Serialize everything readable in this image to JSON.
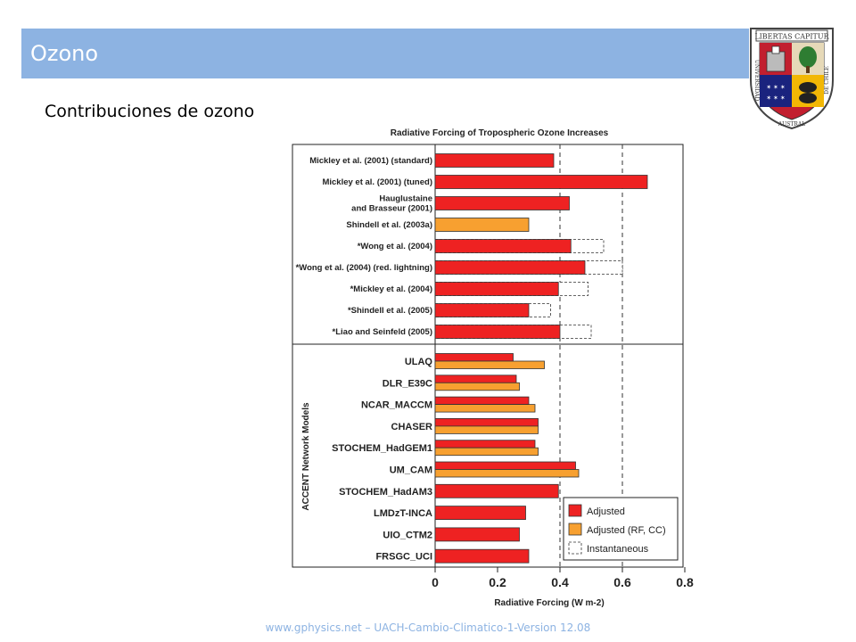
{
  "slide": {
    "title": "Ozono",
    "subtitle": "Contribuciones de ozono",
    "footer": "www.gphysics.net – UACH-Cambio-Climatico-1-Version 12.08",
    "accent_color": "#8db3e2",
    "crest_text": {
      "top": "LIBERTAS CAPITUR",
      "left": "UNIVERSIDAD",
      "bottom": "AUSTRAL",
      "right": "DE CHILE"
    }
  },
  "chart_data": {
    "type": "bar",
    "orientation": "horizontal",
    "title": "Radiative Forcing of Tropospheric Ozone Increases",
    "xlabel": "Radiative Forcing (W m-2)",
    "xlim": [
      0,
      0.8
    ],
    "x_ticks": [
      "0",
      "0.2",
      "0.4",
      "0.6",
      "0.8"
    ],
    "reference_lines": [
      0.4,
      0.6
    ],
    "group_label": "ACCENT Network Models",
    "colors": {
      "Adjusted": "#ee2222",
      "Adjusted (RF, CC)": "#f7a030",
      "Instantaneous": "#ffffff"
    },
    "legend": [
      "Adjusted",
      "Adjusted (RF, CC)",
      "Instantaneous"
    ],
    "legend_position": "bottom-right",
    "studies": [
      {
        "label": "Mickley et al. (2001) (standard)",
        "lines": [
          "Mickley et al. (2001) (standard)"
        ],
        "adjusted": 0.38
      },
      {
        "label": "Mickley et al. (2001) (tuned)",
        "lines": [
          "Mickley et al. (2001) (tuned)"
        ],
        "adjusted": 0.68
      },
      {
        "label": "Hauglustaine and Brasseur (2001)",
        "lines": [
          "Hauglustaine",
          "and Brasseur (2001)"
        ],
        "adjusted": 0.43
      },
      {
        "label": "Shindell et al. (2003a)",
        "lines": [
          "Shindell et al. (2003a)"
        ],
        "adjusted_rfcc": 0.3
      },
      {
        "label": "*Wong et al. (2004)",
        "lines": [
          "*Wong et al. (2004)"
        ],
        "adjusted": 0.435,
        "instantaneous": 0.54
      },
      {
        "label": "*Wong et al. (2004) (red. lightning)",
        "lines": [
          "*Wong et al. (2004) (red. lightning)"
        ],
        "adjusted": 0.48,
        "instantaneous": 0.6
      },
      {
        "label": "*Mickley et al. (2004)",
        "lines": [
          "*Mickley et al. (2004)"
        ],
        "adjusted": 0.395,
        "instantaneous": 0.49
      },
      {
        "label": "*Shindell et al. (2005)",
        "lines": [
          "*Shindell et al. (2005)"
        ],
        "adjusted": 0.3,
        "instantaneous": 0.37
      },
      {
        "label": "*Liao and Seinfeld (2005)",
        "lines": [
          "*Liao and Seinfeld (2005)"
        ],
        "adjusted": 0.4,
        "instantaneous": 0.5
      }
    ],
    "models": [
      {
        "label": "ULAQ",
        "adjusted": 0.25,
        "adjusted_rfcc": 0.35
      },
      {
        "label": "DLR_E39C",
        "adjusted": 0.26,
        "adjusted_rfcc": 0.27
      },
      {
        "label": "NCAR_MACCM",
        "adjusted": 0.3,
        "adjusted_rfcc": 0.32
      },
      {
        "label": "CHASER",
        "adjusted": 0.33,
        "adjusted_rfcc": 0.33
      },
      {
        "label": "STOCHEM_HadGEM1",
        "adjusted": 0.32,
        "adjusted_rfcc": 0.33
      },
      {
        "label": "UM_CAM",
        "adjusted": 0.45,
        "adjusted_rfcc": 0.46
      },
      {
        "label": "STOCHEM_HadAM3",
        "adjusted": 0.395
      },
      {
        "label": "LMDzT-INCA",
        "adjusted": 0.29
      },
      {
        "label": "UIO_CTM2",
        "adjusted": 0.27
      },
      {
        "label": "FRSGC_UCI",
        "adjusted": 0.3
      }
    ]
  }
}
